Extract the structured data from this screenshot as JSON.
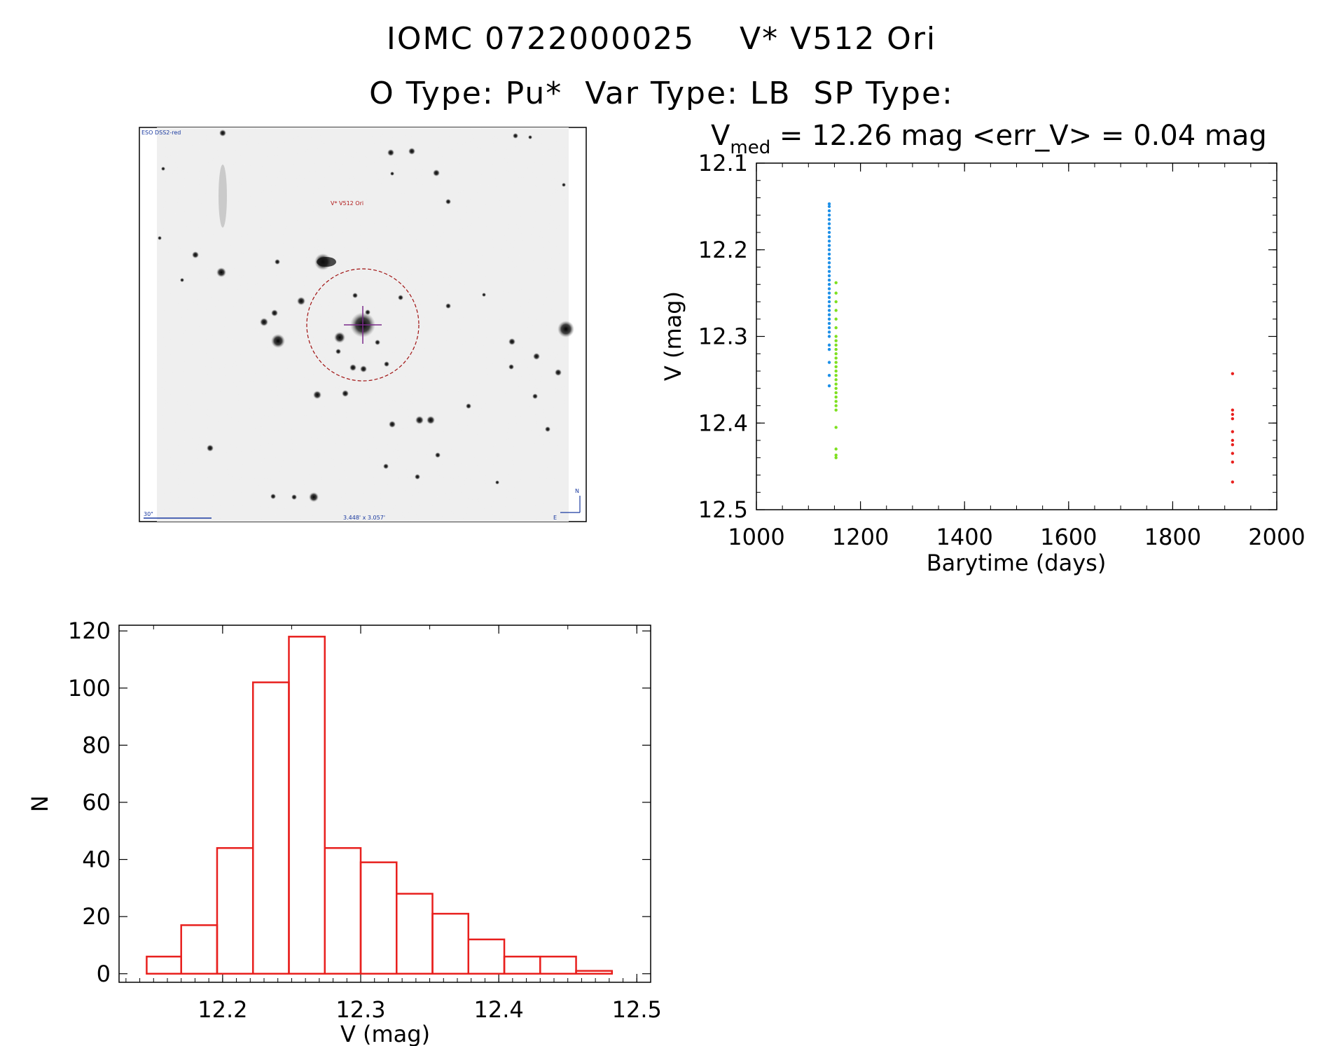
{
  "header": {
    "title_line1": "IOMC 0722000025    V* V512 Ori",
    "title_line2": "O Type: Pu*  Var Type: LB  SP Type:"
  },
  "finder_image": {
    "survey_label": "ESO DSS2-red",
    "target_label": "V* V512 Ori",
    "scale_label": "30\"",
    "fov_label": "3.448' x 3.057'",
    "north_label": "N",
    "east_label": "E"
  },
  "chart_data": [
    {
      "type": "scatter",
      "title_prefix": "V",
      "title_sub": "med",
      "title_rest": " = 12.26 mag <err_V> = 0.04 mag",
      "xlabel": "Barytime (days)",
      "ylabel": "V (mag)",
      "xlim": [
        1000,
        2000
      ],
      "ylim": [
        12.5,
        12.1
      ],
      "y_inverted": true,
      "xticks": [
        1000,
        1200,
        1400,
        1600,
        1800,
        2000
      ],
      "yticks": [
        12.1,
        12.2,
        12.3,
        12.4,
        12.5
      ],
      "ytick_labels": [
        "12.1",
        "12.2",
        "12.3",
        "12.4",
        "12.5"
      ],
      "series": [
        {
          "color": "#1e90e8",
          "points": [
            [
              1140,
              12.147
            ],
            [
              1140,
              12.15
            ],
            [
              1140,
              12.155
            ],
            [
              1140,
              12.16
            ],
            [
              1140,
              12.165
            ],
            [
              1140,
              12.17
            ],
            [
              1140,
              12.175
            ],
            [
              1140,
              12.18
            ],
            [
              1140,
              12.185
            ],
            [
              1140,
              12.19
            ],
            [
              1140,
              12.195
            ],
            [
              1140,
              12.2
            ],
            [
              1140,
              12.205
            ],
            [
              1140,
              12.21
            ],
            [
              1140,
              12.215
            ],
            [
              1140,
              12.22
            ],
            [
              1140,
              12.225
            ],
            [
              1140,
              12.23
            ],
            [
              1140,
              12.235
            ],
            [
              1140,
              12.24
            ],
            [
              1140,
              12.245
            ],
            [
              1140,
              12.25
            ],
            [
              1140,
              12.255
            ],
            [
              1140,
              12.26
            ],
            [
              1140,
              12.265
            ],
            [
              1140,
              12.27
            ],
            [
              1140,
              12.275
            ],
            [
              1140,
              12.28
            ],
            [
              1140,
              12.285
            ],
            [
              1140,
              12.29
            ],
            [
              1140,
              12.295
            ],
            [
              1140,
              12.3
            ],
            [
              1140,
              12.31
            ],
            [
              1140,
              12.315
            ],
            [
              1140,
              12.33
            ],
            [
              1140,
              12.345
            ],
            [
              1140,
              12.357
            ]
          ]
        },
        {
          "color": "#7ee020",
          "points": [
            [
              1153,
              12.238
            ],
            [
              1153,
              12.25
            ],
            [
              1153,
              12.26
            ],
            [
              1153,
              12.27
            ],
            [
              1153,
              12.28
            ],
            [
              1153,
              12.29
            ],
            [
              1153,
              12.3
            ],
            [
              1153,
              12.305
            ],
            [
              1153,
              12.31
            ],
            [
              1153,
              12.315
            ],
            [
              1153,
              12.32
            ],
            [
              1153,
              12.325
            ],
            [
              1153,
              12.33
            ],
            [
              1153,
              12.335
            ],
            [
              1153,
              12.34
            ],
            [
              1153,
              12.345
            ],
            [
              1153,
              12.35
            ],
            [
              1153,
              12.355
            ],
            [
              1153,
              12.36
            ],
            [
              1153,
              12.365
            ],
            [
              1153,
              12.37
            ],
            [
              1153,
              12.375
            ],
            [
              1153,
              12.38
            ],
            [
              1153,
              12.385
            ],
            [
              1153,
              12.405
            ],
            [
              1153,
              12.43
            ],
            [
              1153,
              12.437
            ],
            [
              1153,
              12.44
            ]
          ]
        },
        {
          "color": "#e8201e",
          "points": [
            [
              1915,
              12.343
            ],
            [
              1915,
              12.385
            ],
            [
              1915,
              12.39
            ],
            [
              1915,
              12.395
            ],
            [
              1915,
              12.41
            ],
            [
              1915,
              12.42
            ],
            [
              1915,
              12.425
            ],
            [
              1915,
              12.435
            ],
            [
              1915,
              12.445
            ],
            [
              1915,
              12.468
            ]
          ]
        }
      ]
    },
    {
      "type": "bar",
      "style": "step-histogram",
      "color": "#e8201e",
      "xlabel": "V (mag)",
      "ylabel": "N",
      "xlim": [
        12.125,
        12.51
      ],
      "ylim": [
        -3,
        122
      ],
      "xticks": [
        12.2,
        12.3,
        12.4,
        12.5
      ],
      "yticks": [
        0,
        20,
        40,
        60,
        80,
        100,
        120
      ],
      "bins": [
        [
          12.145,
          12.17,
          6
        ],
        [
          12.17,
          12.196,
          17
        ],
        [
          12.196,
          12.222,
          44
        ],
        [
          12.222,
          12.248,
          102
        ],
        [
          12.248,
          12.274,
          118
        ],
        [
          12.274,
          12.3,
          44
        ],
        [
          12.3,
          12.326,
          39
        ],
        [
          12.326,
          12.352,
          28
        ],
        [
          12.352,
          12.378,
          21
        ],
        [
          12.378,
          12.404,
          12
        ],
        [
          12.404,
          12.43,
          6
        ],
        [
          12.43,
          12.456,
          6
        ],
        [
          12.456,
          12.482,
          1
        ]
      ]
    }
  ]
}
